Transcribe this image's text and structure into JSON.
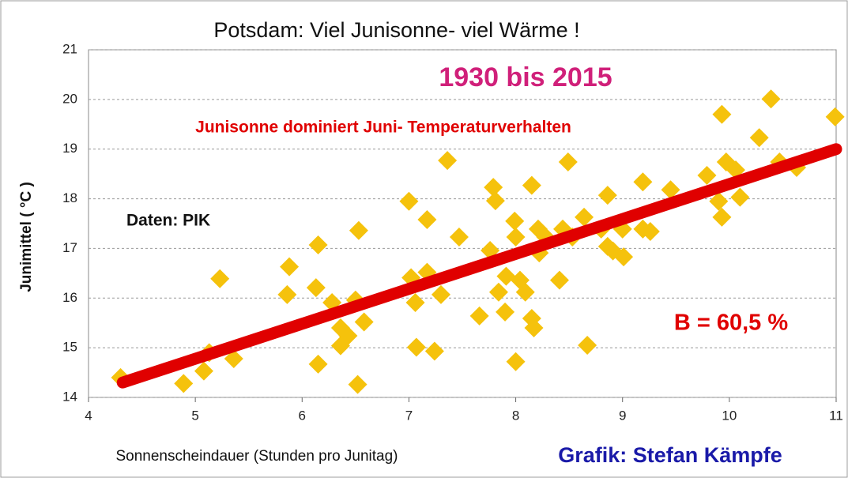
{
  "chart_data": {
    "type": "scatter",
    "title": "Potsdam: Viel Junisonne- viel Wärme !",
    "xlabel": "Sonnenscheindauer  (Stunden pro Junitag)",
    "ylabel": "Junimittel  ( °C )",
    "annotations": [
      {
        "text": "1930 bis 2015",
        "color": "#d0207a"
      },
      {
        "text": "Junisonne dominiert Juni- Temperaturverhalten",
        "color": "#e00000"
      },
      {
        "text": "Daten: PIK",
        "color": "#111111"
      },
      {
        "text": "B = 60,5 %",
        "color": "#e00000"
      },
      {
        "text": "Grafik: Stefan Kämpfe",
        "color": "#1a1aa8"
      }
    ],
    "color": "#f5c20c",
    "x": [
      4.3,
      4.89,
      5.08,
      5.13,
      5.23,
      5.36,
      5.88,
      5.86,
      6.15,
      6.13,
      6.15,
      6.28,
      6.36,
      6.36,
      6.43,
      6.53,
      6.52,
      6.58,
      6.5,
      7.0,
      7.02,
      7.06,
      7.07,
      7.17,
      7.17,
      7.24,
      7.3,
      7.36,
      7.47,
      7.66,
      7.76,
      7.79,
      7.81,
      7.84,
      7.9,
      7.91,
      7.99,
      8.0,
      8.0,
      8.04,
      8.09,
      8.15,
      8.15,
      8.17,
      8.21,
      8.22,
      8.28,
      8.41,
      8.44,
      8.49,
      8.53,
      8.64,
      8.67,
      8.8,
      8.86,
      8.86,
      8.91,
      9.01,
      9.0,
      9.19,
      9.19,
      9.26,
      9.45,
      9.79,
      9.9,
      9.93,
      9.93,
      9.97,
      10.06,
      10.1,
      10.28,
      10.39,
      10.47,
      10.63,
      10.99
    ],
    "values": [
      14.4,
      14.28,
      14.53,
      14.9,
      16.39,
      14.78,
      16.63,
      16.07,
      17.07,
      16.21,
      14.67,
      15.91,
      15.4,
      15.04,
      15.24,
      17.36,
      14.26,
      15.52,
      15.96,
      17.95,
      16.41,
      15.91,
      15.01,
      17.58,
      16.52,
      14.93,
      16.07,
      18.77,
      17.23,
      15.64,
      16.96,
      18.23,
      17.96,
      16.12,
      15.72,
      16.44,
      17.55,
      17.23,
      14.72,
      16.36,
      16.12,
      18.27,
      15.59,
      15.4,
      17.39,
      16.91,
      17.23,
      16.36,
      17.39,
      18.74,
      17.23,
      17.63,
      15.05,
      17.39,
      18.07,
      17.04,
      16.95,
      16.83,
      17.39,
      18.34,
      17.39,
      17.34,
      18.18,
      18.47,
      17.95,
      19.7,
      17.63,
      18.74,
      18.58,
      18.03,
      19.23,
      20.01,
      18.74,
      18.63,
      19.65
    ],
    "trendline": {
      "x": [
        4.32,
        11
      ],
      "values": [
        14.3,
        19.0
      ],
      "color": "#e00000"
    },
    "xlim": [
      4,
      11
    ],
    "xticks": [
      4,
      5,
      6,
      7,
      8,
      9,
      10,
      11
    ],
    "ylim": [
      14,
      21
    ],
    "yticks": [
      14,
      15,
      16,
      17,
      18,
      19,
      20,
      21
    ],
    "grid": true
  }
}
